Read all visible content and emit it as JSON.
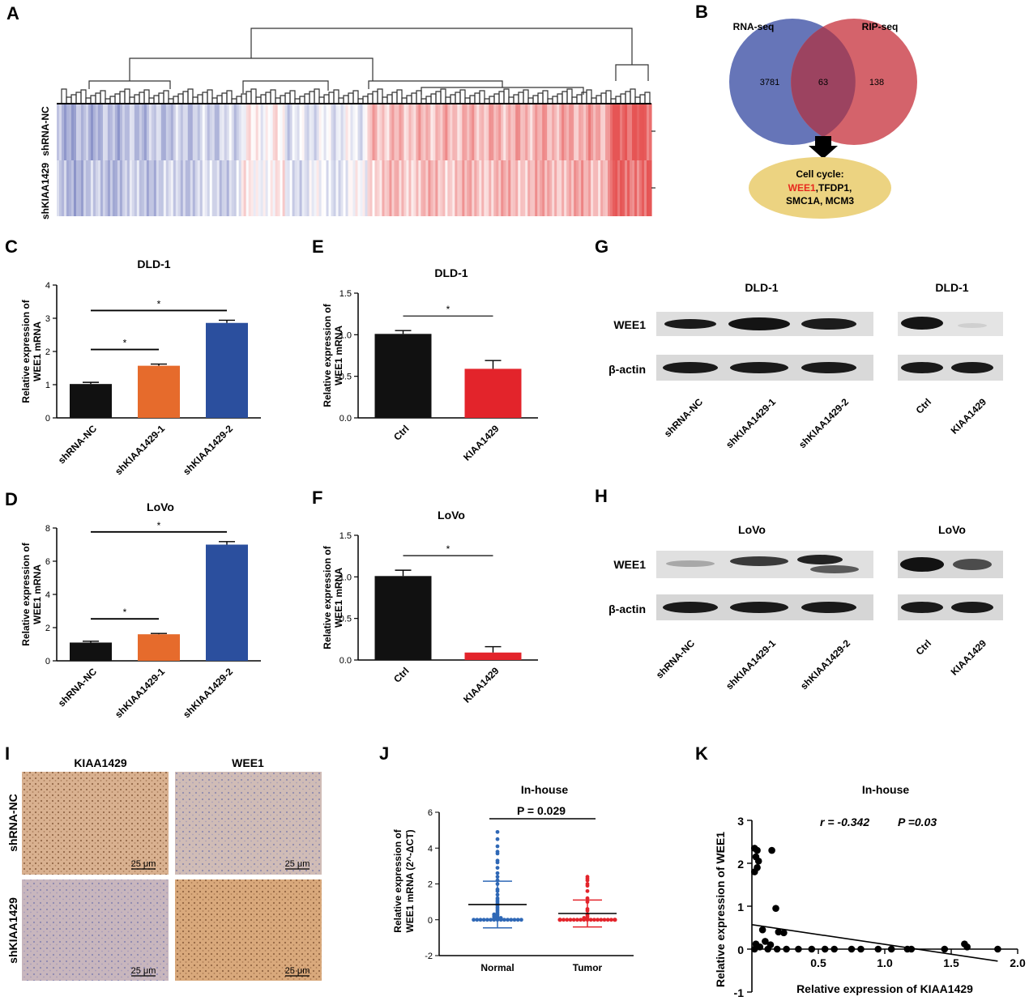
{
  "panels": {
    "A": {
      "label": "A",
      "row_labels": [
        "shRNA-NC",
        "shKIAA1429"
      ]
    },
    "B": {
      "label": "B",
      "set_left": "RNA-seq",
      "set_right": "RIP-seq",
      "count_left": "3781",
      "count_overlap": "63",
      "count_right": "138",
      "result_title": "Cell cycle:",
      "result_highlight": "WEE1",
      "result_line1_rest": ",TFDP1,",
      "result_line2": "SMC1A, MCM3",
      "colors": {
        "left": "#6675b8",
        "right": "#d4636b",
        "overlap": "#9c4360",
        "result": "#ecd381",
        "highlight": "#e8281e"
      }
    },
    "G": {
      "label": "G",
      "left_title": "DLD-1",
      "right_title": "DLD-1",
      "rows": [
        "WEE1",
        "β-actin"
      ],
      "lanes_left": [
        "shRNA-NC",
        "shKIAA1429-1",
        "shKIAA1429-2"
      ],
      "lanes_right": [
        "Ctrl",
        "KIAA1429"
      ]
    },
    "H": {
      "label": "H",
      "left_title": "LoVo",
      "right_title": "LoVo",
      "rows": [
        "WEE1",
        "β-actin"
      ],
      "lanes_left": [
        "shRNA-NC",
        "shKIAA1429-1",
        "shKIAA1429-2"
      ],
      "lanes_right": [
        "Ctrl",
        "KIAA1429"
      ]
    },
    "I": {
      "label": "I",
      "col_labels": [
        "KIAA1429",
        "WEE1"
      ],
      "row_labels": [
        "shRNA-NC",
        "shKIAA1429"
      ],
      "scale_bar": "25 μm"
    }
  },
  "chart_data": [
    {
      "id": "C",
      "label": "C",
      "type": "bar",
      "title": "DLD-1",
      "ylabel": [
        "Relative expression of",
        "WEE1 mRNA"
      ],
      "categories": [
        "shRNA-NC",
        "shKIAA1429-1",
        "shKIAA1429-2"
      ],
      "values": [
        1.02,
        1.57,
        2.86
      ],
      "errors": [
        0.05,
        0.05,
        0.08
      ],
      "colors": [
        "#111111",
        "#e66b2c",
        "#2b4f9e"
      ],
      "ylim": [
        0,
        4
      ],
      "yticks": [
        "0",
        "1",
        "2",
        "3",
        "4"
      ],
      "significance": [
        "*",
        "*"
      ]
    },
    {
      "id": "D",
      "label": "D",
      "type": "bar",
      "title": "LoVo",
      "ylabel": [
        "Relative expression of",
        "WEE1 mRNA"
      ],
      "categories": [
        "shRNA-NC",
        "shKIAA1429-1",
        "shKIAA1429-2"
      ],
      "values": [
        1.1,
        1.6,
        7.0
      ],
      "errors": [
        0.08,
        0.05,
        0.18
      ],
      "colors": [
        "#111111",
        "#e66b2c",
        "#2b4f9e"
      ],
      "ylim": [
        0,
        8
      ],
      "yticks": [
        "0",
        "2",
        "4",
        "6",
        "8"
      ],
      "significance": [
        "*",
        "*"
      ]
    },
    {
      "id": "E",
      "label": "E",
      "type": "bar",
      "title": "DLD-1",
      "ylabel": [
        "Relative expression of",
        "WEE1 mRNA"
      ],
      "categories": [
        "Ctrl",
        "KIAA1429"
      ],
      "values": [
        1.01,
        0.59
      ],
      "errors": [
        0.04,
        0.1
      ],
      "colors": [
        "#111111",
        "#e3242b"
      ],
      "ylim": [
        0,
        1.5
      ],
      "yticks": [
        "0.0",
        "0.5",
        "1.0",
        "1.5"
      ],
      "significance": [
        "*"
      ]
    },
    {
      "id": "F",
      "label": "F",
      "type": "bar",
      "title": "LoVo",
      "ylabel": [
        "Relative expression of",
        "WEE1 mRNA"
      ],
      "categories": [
        "Ctrl",
        "KIAA1429"
      ],
      "values": [
        1.01,
        0.09
      ],
      "errors": [
        0.07,
        0.07
      ],
      "colors": [
        "#111111",
        "#e3242b"
      ],
      "ylim": [
        0,
        1.5
      ],
      "yticks": [
        "0.0",
        "0.5",
        "1.0",
        "1.5"
      ],
      "significance": [
        "*"
      ]
    },
    {
      "id": "J",
      "label": "J",
      "type": "scatter",
      "title": "In-house",
      "ylabel": [
        "Relative expression of",
        "WEE1 mRNA (2^-ΔCT)"
      ],
      "categories": [
        "Normal",
        "Tumor"
      ],
      "ylim": [
        -2,
        6
      ],
      "yticks": [
        "-2",
        "0",
        "2",
        "4",
        "6"
      ],
      "pvalue": "P = 0.029",
      "series": [
        {
          "name": "Normal",
          "color": "#2f68b6",
          "mean": 0.85,
          "sd": 1.3,
          "values": [
            4.9,
            4.5,
            4.1,
            3.8,
            3.7,
            3.3,
            3.2,
            2.9,
            2.6,
            2.4,
            2.2,
            2.0,
            1.7,
            1.6,
            1.4,
            1.2,
            1.1,
            1.0,
            0.9,
            0.8,
            0.7,
            0.6,
            0.5,
            0.4,
            0.3,
            0.3,
            0.2,
            0.2,
            0.1,
            0.1,
            0.1,
            0.0,
            0.0,
            0.0,
            0.0,
            0.0,
            0.0,
            0.0,
            0.0,
            0.0,
            0.0,
            0.0,
            0.0,
            0.0,
            0.0,
            0.0
          ]
        },
        {
          "name": "Tumor",
          "color": "#e3242b",
          "mean": 0.35,
          "sd": 0.75,
          "values": [
            2.4,
            2.3,
            2.2,
            2.0,
            1.9,
            1.6,
            1.2,
            1.0,
            0.6,
            0.5,
            0.3,
            0.2,
            0.1,
            0.1,
            0.0,
            0.0,
            0.0,
            0.0,
            0.0,
            0.0,
            0.0,
            0.0,
            0.0,
            0.0,
            0.0,
            0.0,
            0.0,
            0.0,
            0.0,
            0.0,
            0.0,
            0.0,
            0.0,
            0.0,
            0.0,
            0.0,
            0.0,
            0.0,
            0.0,
            0.0
          ]
        }
      ]
    },
    {
      "id": "K",
      "label": "K",
      "type": "scatter",
      "title": "In-house",
      "xlabel": "Relative expression of KIAA1429",
      "ylabel": "Relative expression of WEE1",
      "stats_r": "r = -0.342",
      "stats_p": "P =0.03",
      "xlim": [
        0,
        2.0
      ],
      "ylim": [
        -1,
        3
      ],
      "xticks": [
        "0.5",
        "1.0",
        "1.5",
        "2.0"
      ],
      "yticks": [
        "-1",
        "0",
        "1",
        "2",
        "3"
      ],
      "trend": {
        "x0": 0,
        "y0": 0.57,
        "x1": 1.85,
        "y1": -0.28
      },
      "points": [
        [
          0.02,
          2.35
        ],
        [
          0.04,
          2.3
        ],
        [
          0.03,
          2.15
        ],
        [
          0.05,
          2.05
        ],
        [
          0.04,
          1.9
        ],
        [
          0.02,
          1.8
        ],
        [
          0.15,
          2.3
        ],
        [
          0.18,
          0.95
        ],
        [
          0.08,
          0.45
        ],
        [
          0.2,
          0.4
        ],
        [
          0.24,
          0.38
        ],
        [
          0.1,
          0.18
        ],
        [
          0.14,
          0.1
        ],
        [
          0.03,
          0.12
        ],
        [
          0.06,
          0.05
        ],
        [
          0.02,
          0.0
        ],
        [
          0.12,
          0.0
        ],
        [
          0.19,
          0.0
        ],
        [
          0.26,
          0.0
        ],
        [
          0.35,
          0.0
        ],
        [
          0.45,
          0.0
        ],
        [
          0.55,
          0.0
        ],
        [
          0.62,
          0.0
        ],
        [
          0.75,
          0.0
        ],
        [
          0.82,
          0.0
        ],
        [
          0.95,
          0.0
        ],
        [
          1.05,
          0.0
        ],
        [
          1.17,
          0.0
        ],
        [
          1.2,
          0.0
        ],
        [
          1.45,
          0.0
        ],
        [
          1.6,
          0.12
        ],
        [
          1.62,
          0.05
        ],
        [
          1.85,
          0.0
        ]
      ]
    }
  ]
}
